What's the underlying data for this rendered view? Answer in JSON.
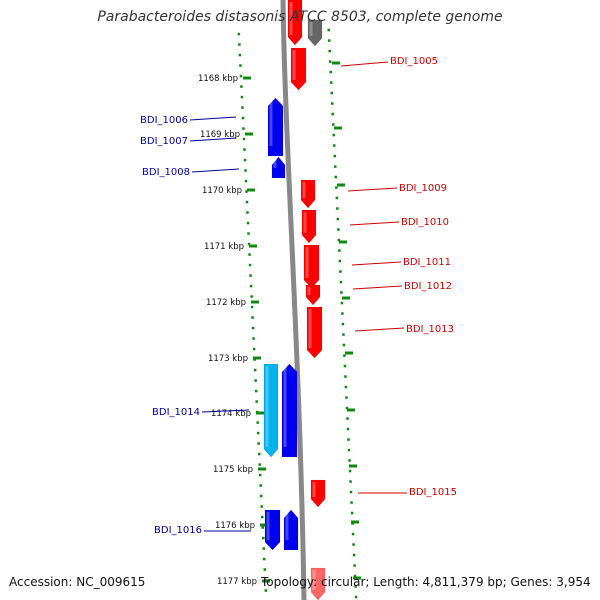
{
  "title": "Parabacteroides distasonis ATCC 8503, complete genome",
  "accession": "Accession: NC_009615",
  "topology": "Topology: circular; Length: 4,811,379 bp; Genes: 3,954",
  "colors": {
    "forward": "#ff0000",
    "reverse": "#0000ee",
    "reverse_alt": "#00b2ee",
    "other": "#666666",
    "label_forward": "#cc0000",
    "label_reverse": "#000099",
    "ticks": "#118811",
    "backbone": "#888888"
  },
  "ticks": [
    "1168 kbp",
    "1169 kbp",
    "1170 kbp",
    "1171 kbp",
    "1172 kbp",
    "1173 kbp",
    "1174 kbp",
    "1175 kbp",
    "1176 kbp",
    "1177 kbp"
  ],
  "gene_labels": [
    {
      "id": "BDI_1005",
      "strand": "forward"
    },
    {
      "id": "BDI_1006",
      "strand": "reverse"
    },
    {
      "id": "BDI_1007",
      "strand": "reverse"
    },
    {
      "id": "BDI_1008",
      "strand": "reverse"
    },
    {
      "id": "BDI_1009",
      "strand": "forward"
    },
    {
      "id": "BDI_1010",
      "strand": "forward"
    },
    {
      "id": "BDI_1011",
      "strand": "forward"
    },
    {
      "id": "BDI_1012",
      "strand": "forward"
    },
    {
      "id": "BDI_1013",
      "strand": "forward"
    },
    {
      "id": "BDI_1014",
      "strand": "reverse"
    },
    {
      "id": "BDI_1015",
      "strand": "forward"
    },
    {
      "id": "BDI_1016",
      "strand": "reverse"
    }
  ]
}
